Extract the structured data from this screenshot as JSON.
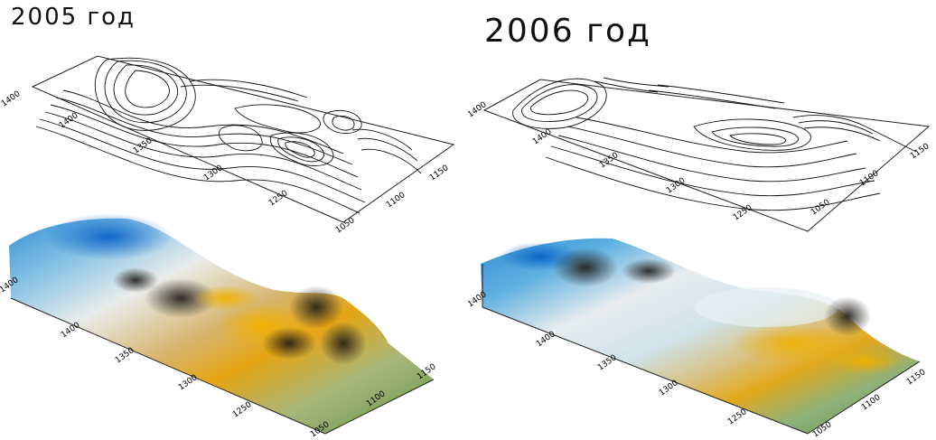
{
  "panels": [
    {
      "title": "2005 год",
      "contour_ticks_left": [
        "1400",
        "1350",
        "1300",
        "1250"
      ],
      "contour_ticks_right": [
        "1150",
        "1100",
        "1050"
      ],
      "surface_ticks_left": [
        "1400",
        "1350",
        "1300",
        "1250"
      ],
      "surface_ticks_right": [
        "1150",
        "1100",
        "1050"
      ]
    },
    {
      "title": "2006 год",
      "contour_ticks_left": [
        "1400",
        "1350",
        "1300",
        "1250"
      ],
      "contour_ticks_right": [
        "1150",
        "1100",
        "1050"
      ],
      "surface_ticks_left": [
        "1400",
        "1350",
        "1300",
        "1250"
      ],
      "surface_ticks_right": [
        "1150",
        "1100",
        "1050"
      ]
    }
  ],
  "colors": {
    "high": "#1e7fd0",
    "snow": "#f2f6f7",
    "dark": "#2a2620",
    "ochre": "#e0a11a",
    "green": "#6f9a55"
  }
}
